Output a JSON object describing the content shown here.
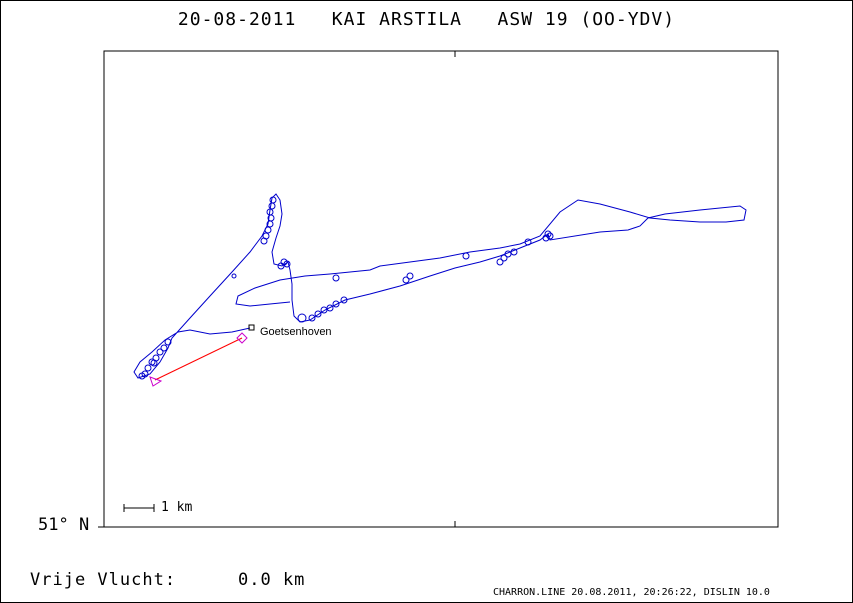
{
  "title": "20-08-2011   KAI ARSTILA   ASW 19 (OO-YDV)",
  "latitude_label": "51° N",
  "free_flight": {
    "label": "Vrije Vlucht:",
    "value": "0.0 km"
  },
  "scale": {
    "label": "1 km"
  },
  "waypoint": {
    "name": "Goetsenhoven"
  },
  "footer": "CHARRON.LINE 20.08.2011, 20:26:22, DISLIN 10.0",
  "colors": {
    "track": "#0000cc",
    "task_line": "#ff0000",
    "start_marker": "#cc00cc",
    "axis": "#000000"
  }
}
